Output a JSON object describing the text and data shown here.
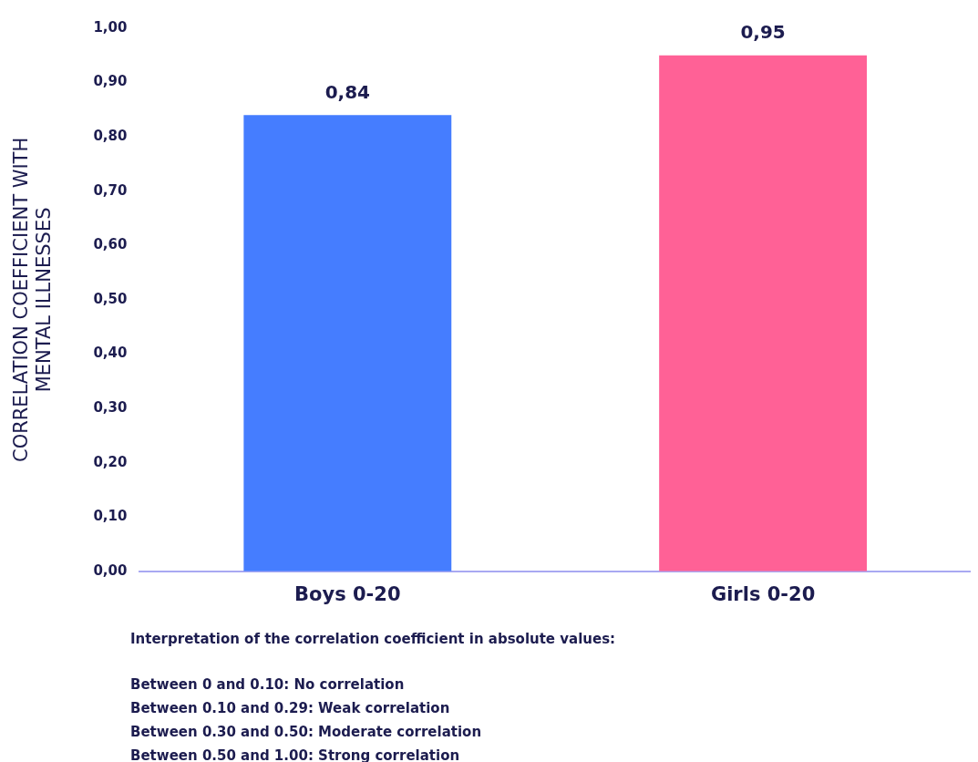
{
  "chart_data": {
    "type": "bar",
    "ylabel": "CORRELATION COEFFICIENT WITH\nMENTAL ILLNESSES",
    "categories": [
      "Boys 0-20",
      "Girls 0-20"
    ],
    "values": [
      0.84,
      0.95
    ],
    "colors": [
      "#457dff",
      "#ff6196"
    ],
    "value_labels": [
      "0,84",
      "0,95"
    ],
    "ylim": [
      0,
      1
    ],
    "yticks": [
      {
        "value": 0,
        "label": "0,00"
      },
      {
        "value": 0.1,
        "label": "0,10"
      },
      {
        "value": 0.2,
        "label": "0,20"
      },
      {
        "value": 0.3,
        "label": "0,30"
      },
      {
        "value": 0.4,
        "label": "0,40"
      },
      {
        "value": 0.5,
        "label": "0,50"
      },
      {
        "value": 0.6,
        "label": "0,60"
      },
      {
        "value": 0.7,
        "label": "0,70"
      },
      {
        "value": 0.8,
        "label": "0,80"
      },
      {
        "value": 0.9,
        "label": "0,90"
      },
      {
        "value": 1,
        "label": "1,00"
      }
    ],
    "grid": false,
    "legend": false,
    "annotations": [
      "Interpretation of the correlation coefficient in absolute values:",
      "Between 0 and 0.10: No correlation",
      "Between 0.10 and 0.29: Weak correlation",
      "Between 0.30 and 0.50: Moderate correlation",
      "Between 0.50 and 1.00: Strong correlation"
    ]
  }
}
